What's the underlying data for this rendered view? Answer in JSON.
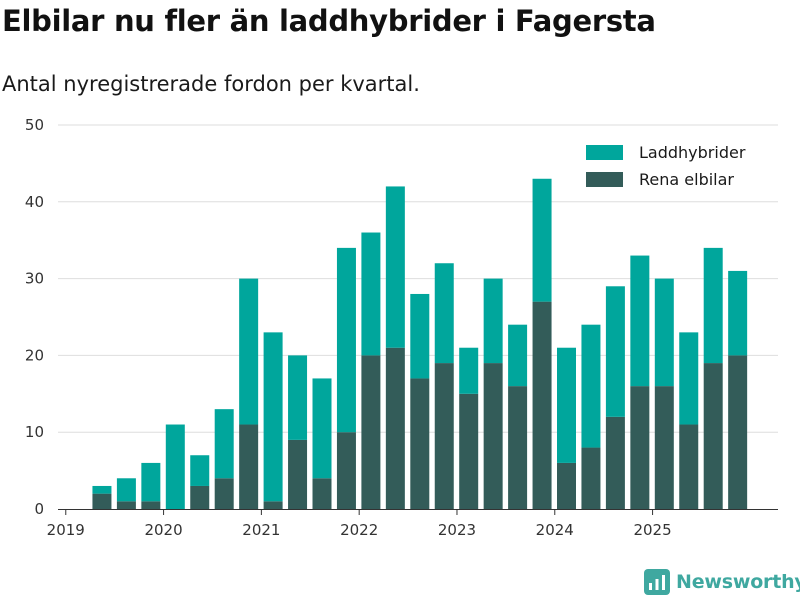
{
  "chart_data": {
    "type": "bar",
    "stacked": true,
    "title": "Elbilar nu fler än laddhybrider i Fagersta",
    "subtitle": "Antal nyregistrerade fordon per kvartal.",
    "xlabel": "",
    "ylabel": "",
    "ylim": [
      0,
      50
    ],
    "yticks": [
      0,
      10,
      20,
      30,
      40,
      50
    ],
    "xticks": [
      "2019",
      "2020",
      "2021",
      "2022",
      "2023",
      "2024",
      "2025"
    ],
    "grid": true,
    "legend_position": "top-right",
    "categories": [
      "2019 Q1",
      "2019 Q2",
      "2019 Q3",
      "2019 Q4",
      "2020 Q1",
      "2020 Q2",
      "2020 Q3",
      "2020 Q4",
      "2021 Q1",
      "2021 Q2",
      "2021 Q3",
      "2021 Q4",
      "2022 Q1",
      "2022 Q2",
      "2022 Q3",
      "2022 Q4",
      "2023 Q1",
      "2023 Q2",
      "2023 Q3",
      "2023 Q4",
      "2024 Q1",
      "2024 Q2",
      "2024 Q3",
      "2024 Q4",
      "2025 Q1",
      "2025 Q2",
      "2025 Q3",
      "2025 Q4"
    ],
    "series": [
      {
        "name": "Rena elbilar",
        "color": "#335c59",
        "values": [
          0,
          2,
          1,
          1,
          0,
          3,
          4,
          11,
          1,
          9,
          4,
          10,
          20,
          21,
          17,
          19,
          15,
          19,
          16,
          27,
          6,
          8,
          12,
          16,
          16,
          11,
          19,
          20
        ]
      },
      {
        "name": "Laddhybrider",
        "color": "#00a69c",
        "values": [
          0,
          1,
          3,
          5,
          11,
          4,
          9,
          19,
          22,
          11,
          13,
          24,
          16,
          21,
          11,
          13,
          6,
          11,
          8,
          16,
          15,
          16,
          17,
          17,
          14,
          12,
          15,
          11
        ]
      }
    ]
  },
  "logo": {
    "text": "Newsworthy"
  }
}
